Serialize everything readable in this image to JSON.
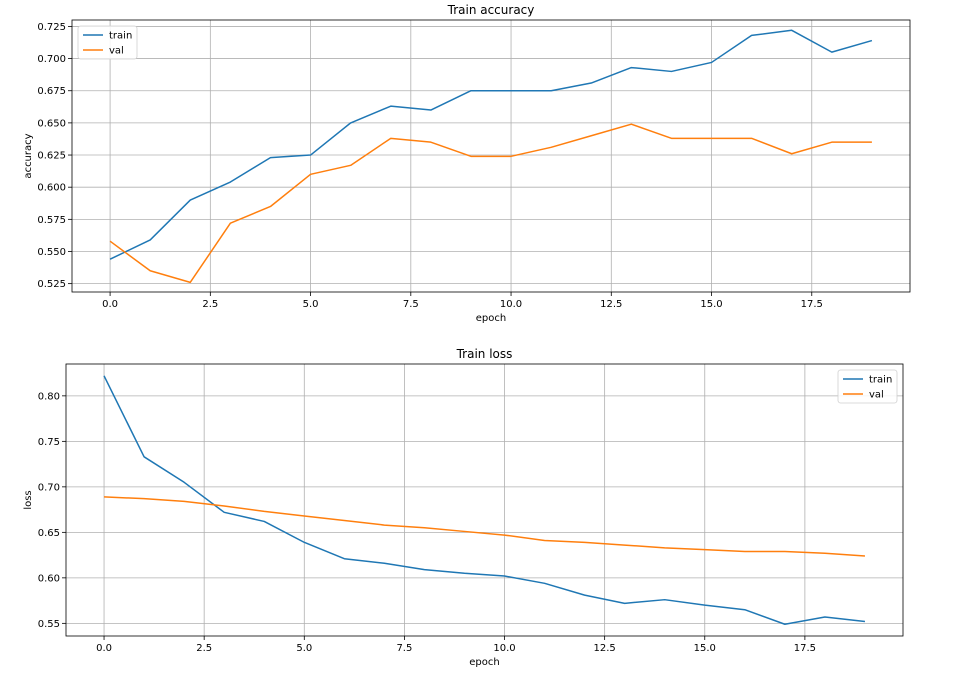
{
  "chart_data": [
    {
      "type": "line",
      "title": "Train accuracy",
      "xlabel": "epoch",
      "ylabel": "accuracy",
      "x": [
        0,
        1,
        2,
        3,
        4,
        5,
        6,
        7,
        8,
        9,
        10,
        11,
        12,
        13,
        14,
        15,
        16,
        17,
        18,
        19
      ],
      "xlim": [
        -0.95,
        19.95
      ],
      "ylim": [
        0.5185,
        0.73
      ],
      "xticks": [
        0.0,
        2.5,
        5.0,
        7.5,
        10.0,
        12.5,
        15.0,
        17.5
      ],
      "xtick_labels": [
        "0.0",
        "2.5",
        "5.0",
        "7.5",
        "10.0",
        "12.5",
        "15.0",
        "17.5"
      ],
      "yticks": [
        0.525,
        0.55,
        0.575,
        0.6,
        0.625,
        0.65,
        0.675,
        0.7,
        0.725
      ],
      "ytick_labels": [
        "0.525",
        "0.550",
        "0.575",
        "0.600",
        "0.625",
        "0.650",
        "0.675",
        "0.700",
        "0.725"
      ],
      "grid": true,
      "legend": "top-left",
      "series": [
        {
          "name": "train",
          "color": "#1f77b4",
          "values": [
            0.544,
            0.559,
            0.59,
            0.604,
            0.623,
            0.625,
            0.65,
            0.663,
            0.66,
            0.675,
            0.675,
            0.675,
            0.681,
            0.693,
            0.69,
            0.697,
            0.718,
            0.722,
            0.705,
            0.714
          ]
        },
        {
          "name": "val",
          "color": "#ff7f0e",
          "values": [
            0.558,
            0.535,
            0.526,
            0.572,
            0.585,
            0.61,
            0.617,
            0.638,
            0.635,
            0.624,
            0.624,
            0.631,
            0.64,
            0.649,
            0.638,
            0.638,
            0.638,
            0.626,
            0.635,
            0.635
          ]
        }
      ]
    },
    {
      "type": "line",
      "title": "Train loss",
      "xlabel": "epoch",
      "ylabel": "loss",
      "x": [
        0,
        1,
        2,
        3,
        4,
        5,
        6,
        7,
        8,
        9,
        10,
        11,
        12,
        13,
        14,
        15,
        16,
        17,
        18,
        19
      ],
      "xlim": [
        -0.95,
        19.95
      ],
      "ylim": [
        0.5361,
        0.835
      ],
      "xticks": [
        0.0,
        2.5,
        5.0,
        7.5,
        10.0,
        12.5,
        15.0,
        17.5
      ],
      "xtick_labels": [
        "0.0",
        "2.5",
        "5.0",
        "7.5",
        "10.0",
        "12.5",
        "15.0",
        "17.5"
      ],
      "yticks": [
        0.55,
        0.6,
        0.65,
        0.7,
        0.75,
        0.8
      ],
      "ytick_labels": [
        "0.55",
        "0.60",
        "0.65",
        "0.70",
        "0.75",
        "0.80"
      ],
      "grid": true,
      "legend": "top-right",
      "series": [
        {
          "name": "train",
          "color": "#1f77b4",
          "values": [
            0.822,
            0.733,
            0.705,
            0.672,
            0.662,
            0.639,
            0.621,
            0.616,
            0.609,
            0.605,
            0.602,
            0.594,
            0.581,
            0.572,
            0.576,
            0.57,
            0.565,
            0.549,
            0.557,
            0.552
          ]
        },
        {
          "name": "val",
          "color": "#ff7f0e",
          "values": [
            0.689,
            0.687,
            0.684,
            0.679,
            0.673,
            0.668,
            0.663,
            0.658,
            0.655,
            0.651,
            0.647,
            0.641,
            0.639,
            0.636,
            0.633,
            0.631,
            0.629,
            0.629,
            0.627,
            0.624
          ]
        }
      ]
    }
  ]
}
